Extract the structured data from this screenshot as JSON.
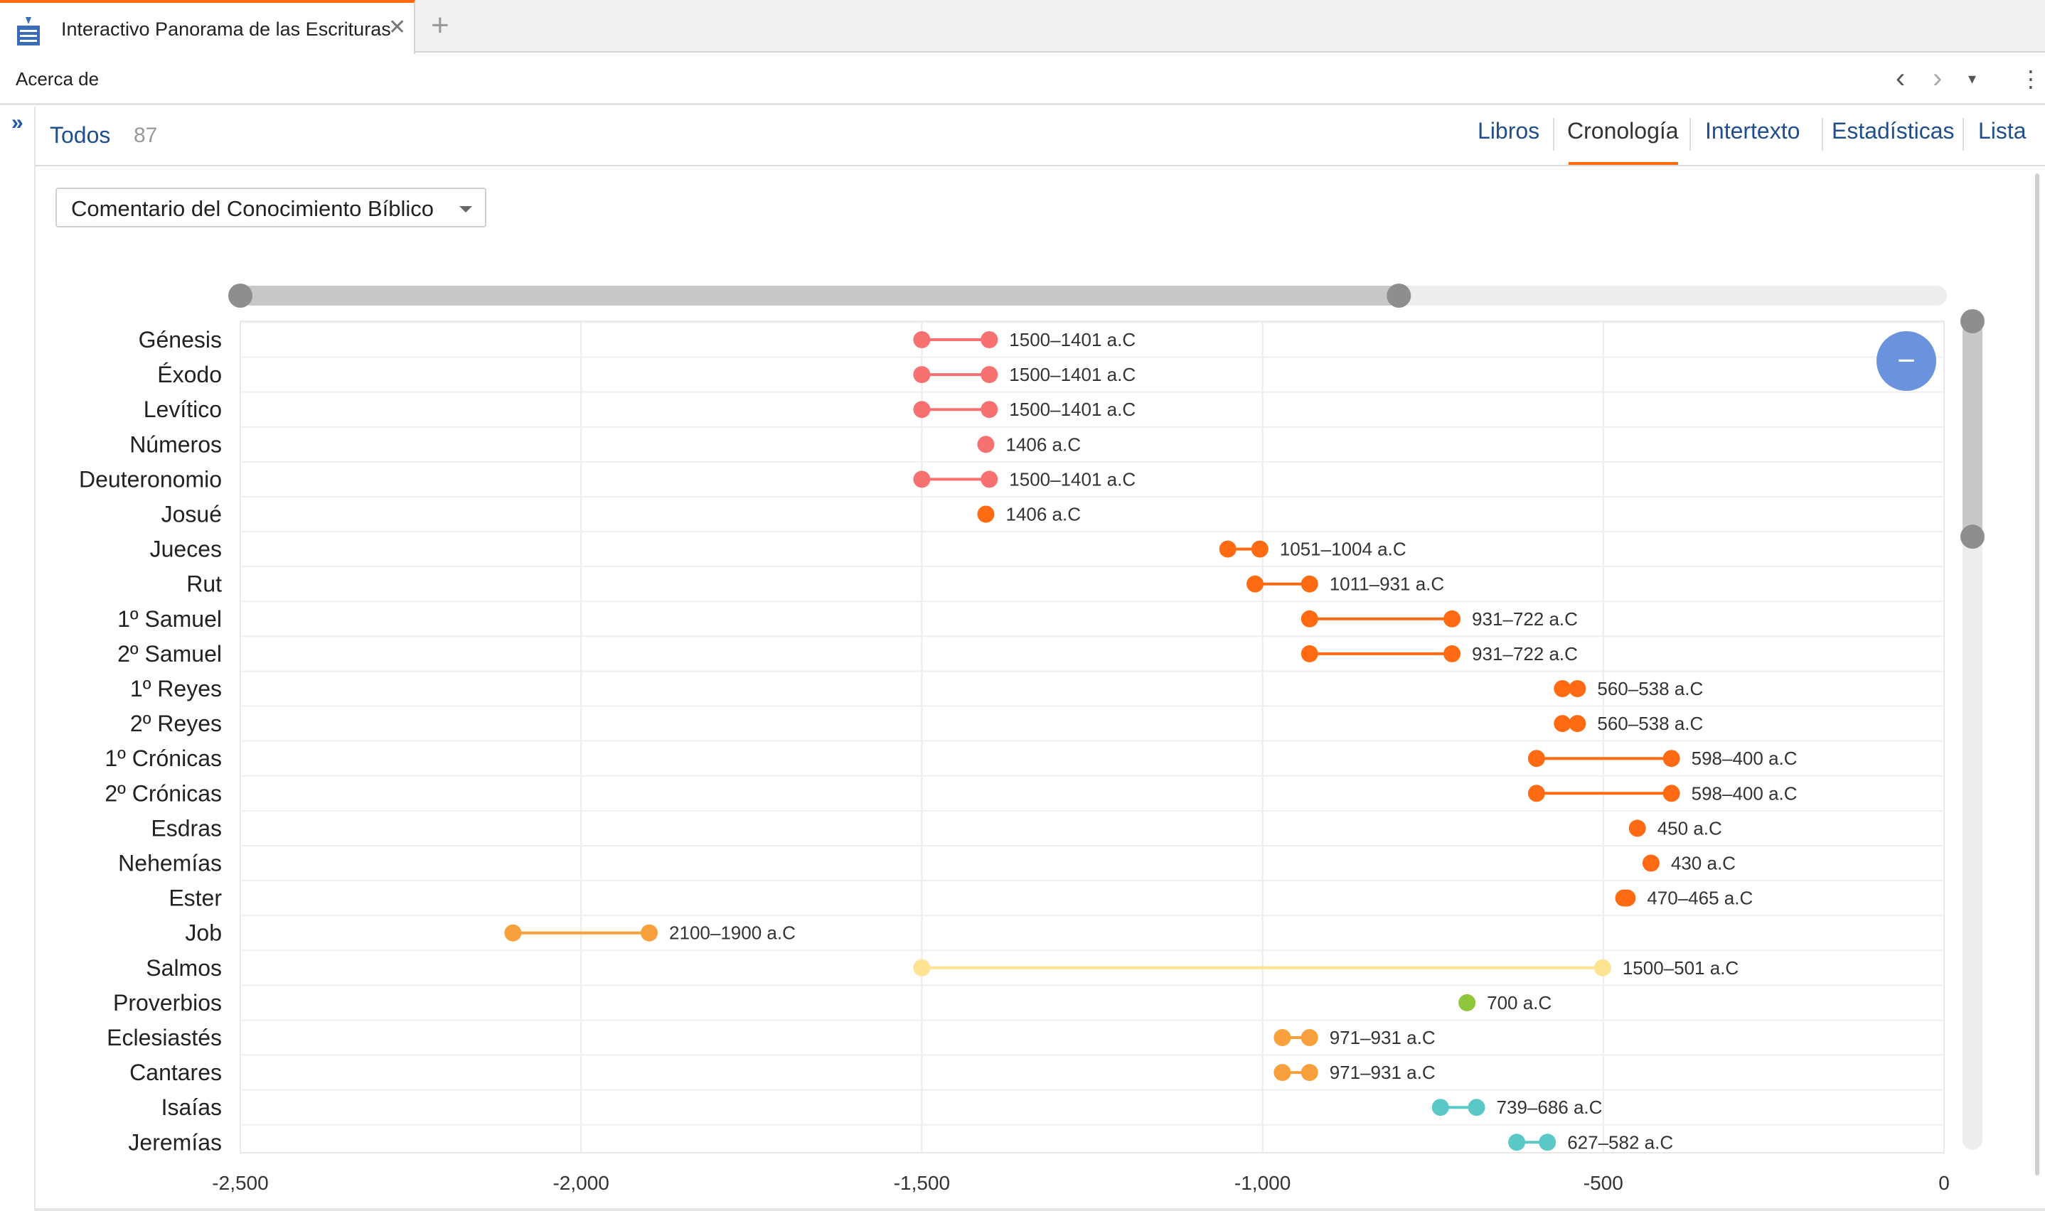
{
  "window": {
    "tab_title": "Interactivo Panorama de las Escrituras",
    "close_glyph": "✕",
    "add_glyph": "+",
    "tab_icon": "bible-book-icon"
  },
  "toolbar": {
    "about_label": "Acerca de",
    "back_glyph": "‹",
    "forward_glyph": "›",
    "dropdown_glyph": "▾",
    "more_glyph": "⋮"
  },
  "rail": {
    "toggle_glyph": "»"
  },
  "header": {
    "filter_label": "Todos",
    "filter_count": "87",
    "tabs": [
      {
        "label": "Libros"
      },
      {
        "label": "Cronología"
      },
      {
        "label": "Intertexto"
      },
      {
        "label": "Estadísticas"
      },
      {
        "label": "Lista"
      }
    ],
    "active_tab": "Cronología"
  },
  "resource": {
    "selected": "Comentario del Conocimiento Bíblico"
  },
  "zoom_button": {
    "glyph": "−",
    "color": "#6b93dd"
  },
  "colors": {
    "pentateuch": "#f87171",
    "history": "#ff6a13",
    "poetry": "#f7a03c",
    "psalms": "#fde392",
    "proverbs": "#8fc63c",
    "prophets": "#5bc8c8",
    "accent": "#ff6a13",
    "link": "#1f4f8f"
  },
  "chart_data": {
    "type": "scatter",
    "subtype": "dumbbell",
    "title": "",
    "xlabel": "",
    "ylabel": "",
    "xlim": [
      -2500,
      0
    ],
    "x_ticks": [
      -2500,
      -2000,
      -1500,
      -1000,
      -500,
      0
    ],
    "x_tick_labels": [
      "-2,500",
      "-2,000",
      "-1,500",
      "-1,000",
      "-500",
      "0"
    ],
    "grid": true,
    "legend": "none",
    "range_slider": [
      -2500,
      -800
    ],
    "vertical_scroll_fraction": [
      0,
      0.26
    ],
    "rows": [
      {
        "book": "Génesis",
        "start": -1500,
        "end": -1401,
        "label": "1500–1401 a.C",
        "color": "#f87171"
      },
      {
        "book": "Éxodo",
        "start": -1500,
        "end": -1401,
        "label": "1500–1401 a.C",
        "color": "#f87171"
      },
      {
        "book": "Levítico",
        "start": -1500,
        "end": -1401,
        "label": "1500–1401 a.C",
        "color": "#f87171"
      },
      {
        "book": "Números",
        "start": -1406,
        "end": -1406,
        "label": "1406 a.C",
        "color": "#f87171"
      },
      {
        "book": "Deuteronomio",
        "start": -1500,
        "end": -1401,
        "label": "1500–1401 a.C",
        "color": "#f87171"
      },
      {
        "book": "Josué",
        "start": -1406,
        "end": -1406,
        "label": "1406 a.C",
        "color": "#ff6a13"
      },
      {
        "book": "Jueces",
        "start": -1051,
        "end": -1004,
        "label": "1051–1004 a.C",
        "color": "#ff6a13"
      },
      {
        "book": "Rut",
        "start": -1011,
        "end": -931,
        "label": "1011–931 a.C",
        "color": "#ff6a13"
      },
      {
        "book": "1º Samuel",
        "start": -931,
        "end": -722,
        "label": "931–722 a.C",
        "color": "#ff6a13"
      },
      {
        "book": "2º Samuel",
        "start": -931,
        "end": -722,
        "label": "931–722 a.C",
        "color": "#ff6a13"
      },
      {
        "book": "1º Reyes",
        "start": -560,
        "end": -538,
        "label": "560–538 a.C",
        "color": "#ff6a13"
      },
      {
        "book": "2º Reyes",
        "start": -560,
        "end": -538,
        "label": "560–538 a.C",
        "color": "#ff6a13"
      },
      {
        "book": "1º Crónicas",
        "start": -598,
        "end": -400,
        "label": "598–400 a.C",
        "color": "#ff6a13"
      },
      {
        "book": "2º Crónicas",
        "start": -598,
        "end": -400,
        "label": "598–400 a.C",
        "color": "#ff6a13"
      },
      {
        "book": "Esdras",
        "start": -450,
        "end": -450,
        "label": "450 a.C",
        "color": "#ff6a13"
      },
      {
        "book": "Nehemías",
        "start": -430,
        "end": -430,
        "label": "430 a.C",
        "color": "#ff6a13"
      },
      {
        "book": "Ester",
        "start": -470,
        "end": -465,
        "label": "470–465 a.C",
        "color": "#ff6a13"
      },
      {
        "book": "Job",
        "start": -2100,
        "end": -1900,
        "label": "2100–1900 a.C",
        "color": "#f7a03c"
      },
      {
        "book": "Salmos",
        "start": -1500,
        "end": -501,
        "label": "1500–501 a.C",
        "color": "#fde392"
      },
      {
        "book": "Proverbios",
        "start": -700,
        "end": -700,
        "label": "700 a.C",
        "color": "#8fc63c"
      },
      {
        "book": "Eclesiastés",
        "start": -971,
        "end": -931,
        "label": "971–931 a.C",
        "color": "#f7a03c"
      },
      {
        "book": "Cantares",
        "start": -971,
        "end": -931,
        "label": "971–931 a.C",
        "color": "#f7a03c"
      },
      {
        "book": "Isaías",
        "start": -739,
        "end": -686,
        "label": "739–686 a.C",
        "color": "#5bc8c8"
      },
      {
        "book": "Jeremías",
        "start": -627,
        "end": -582,
        "label": "627–582 a.C",
        "color": "#5bc8c8"
      }
    ]
  }
}
